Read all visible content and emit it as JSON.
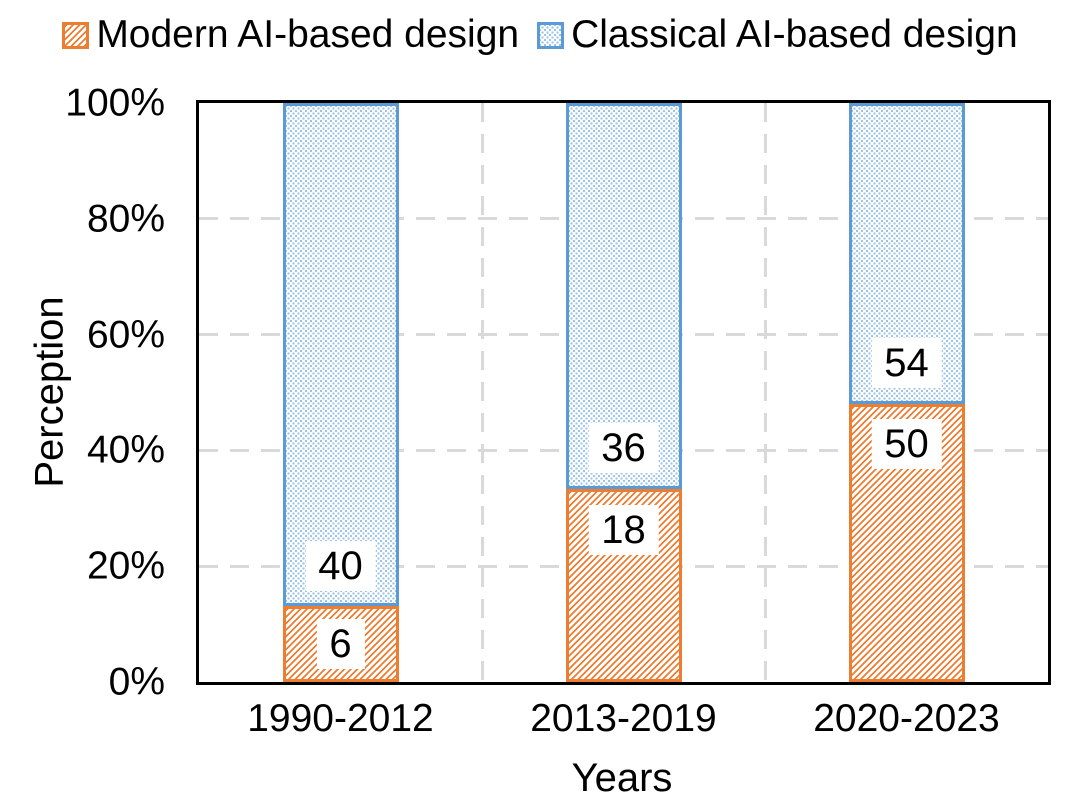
{
  "colors": {
    "modern_series": "#ED7D31",
    "classical_series": "#5B9BD5",
    "classical_dot_fill": "#9DC3E6",
    "gridline": "#D9D9D9",
    "axis_line": "#000000",
    "text": "#000000",
    "label_background": "#FFFFFF"
  },
  "chart_data": {
    "type": "bar",
    "subtype": "stacked-100-percent",
    "title": "",
    "xlabel": "Years",
    "ylabel": "Perception",
    "categories": [
      "1990-2012",
      "2013-2019",
      "2020-2023"
    ],
    "series": [
      {
        "name": "Modern AI-based design",
        "values": [
          6,
          18,
          50
        ],
        "color": "#ED7D31",
        "pattern": "diagonal-hatch"
      },
      {
        "name": "Classical AI-based design",
        "values": [
          40,
          36,
          54
        ],
        "color": "#5B9BD5",
        "pattern": "fine-dots"
      }
    ],
    "segment_percent_heights": {
      "modern": [
        13.04,
        33.33,
        48.08
      ],
      "classical": [
        86.96,
        66.67,
        51.92
      ]
    },
    "y_ticks": [
      "0%",
      "20%",
      "40%",
      "60%",
      "80%",
      "100%"
    ],
    "ylim": [
      0,
      100
    ],
    "grid": "dashed-horizontal-and-vertical",
    "legend_position": "top"
  }
}
